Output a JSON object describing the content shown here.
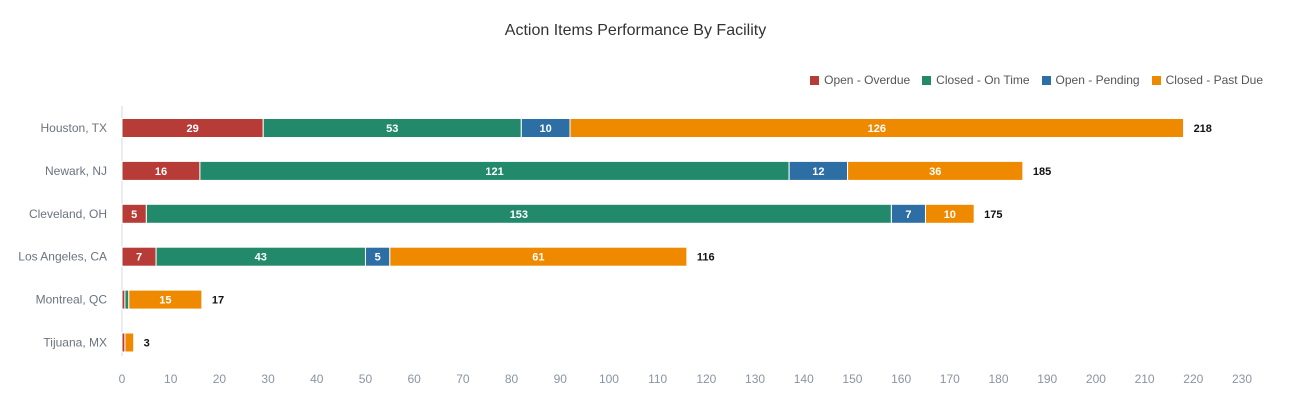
{
  "chart_data": {
    "type": "bar",
    "orientation": "horizontal",
    "stacked": true,
    "title": "Action Items Performance By Facility",
    "categories": [
      "Houston, TX",
      "Newark, NJ",
      "Cleveland, OH",
      "Los Angeles, CA",
      "Montreal, QC",
      "Tijuana, MX"
    ],
    "series": [
      {
        "name": "Open - Overdue",
        "color": "#b73c38",
        "values": [
          29,
          16,
          5,
          7,
          0.6,
          0.6
        ]
      },
      {
        "name": "Closed - On Time",
        "color": "#228a6a",
        "values": [
          53,
          121,
          153,
          43,
          0.8,
          0
        ]
      },
      {
        "name": "Open - Pending",
        "color": "#2d6ea5",
        "values": [
          10,
          12,
          7,
          5,
          0,
          0
        ]
      },
      {
        "name": "Closed - Past Due",
        "color": "#ef8a00",
        "values": [
          126,
          36,
          10,
          61,
          15,
          1.8
        ]
      }
    ],
    "data_labels": [
      [
        "29",
        "53",
        "10",
        "126"
      ],
      [
        "16",
        "121",
        "12",
        "36"
      ],
      [
        "5",
        "153",
        "7",
        "10"
      ],
      [
        "7",
        "43",
        "5",
        "61"
      ],
      [
        "",
        "",
        "",
        "15"
      ],
      [
        "",
        "",
        "",
        ""
      ]
    ],
    "totals": [
      "218",
      "185",
      "175",
      "116",
      "17",
      "3"
    ],
    "xlim": [
      0,
      230
    ],
    "xticks": [
      "0",
      "10",
      "20",
      "30",
      "40",
      "50",
      "60",
      "70",
      "80",
      "90",
      "100",
      "110",
      "120",
      "130",
      "140",
      "150",
      "160",
      "170",
      "180",
      "190",
      "200",
      "210",
      "220",
      "230"
    ],
    "xlabel": "",
    "ylabel": "",
    "grid": false,
    "legend_position": "top-right"
  }
}
